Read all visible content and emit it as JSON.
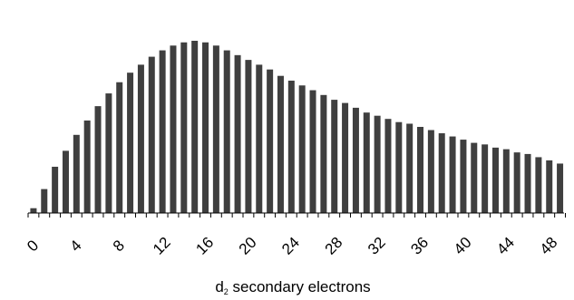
{
  "chart_data": {
    "type": "bar",
    "x": [
      1,
      2,
      3,
      4,
      5,
      6,
      7,
      8,
      9,
      10,
      11,
      12,
      13,
      14,
      15,
      16,
      17,
      18,
      19,
      20,
      21,
      22,
      23,
      24,
      25,
      26,
      27,
      28,
      29,
      30,
      31,
      32,
      33,
      34,
      35,
      36,
      37,
      38,
      39,
      40,
      41,
      42,
      43,
      44,
      45,
      46,
      47,
      48,
      49,
      50
    ],
    "values": [
      3,
      15,
      29,
      39,
      49,
      58,
      67,
      75,
      82,
      88,
      93,
      98,
      102,
      105,
      107,
      108,
      107,
      105,
      102,
      99,
      96,
      93,
      90,
      86,
      83,
      80,
      77,
      74,
      71,
      69,
      66,
      63,
      61,
      59,
      57,
      56,
      54,
      52,
      50,
      48,
      46,
      44,
      43,
      41,
      40,
      38,
      37,
      35,
      33,
      31
    ],
    "xticks": [
      "0",
      "4",
      "8",
      "12",
      "16",
      "20",
      "24",
      "28",
      "32",
      "36",
      "40",
      "44",
      "48"
    ],
    "xtick_values": [
      0,
      4,
      8,
      12,
      16,
      20,
      24,
      28,
      32,
      36,
      40,
      44,
      48
    ],
    "xlabel_main": "d",
    "xlabel_sub": "2",
    "xlabel_rest": " secondary electrons",
    "ylabel": "",
    "ylim": [
      0,
      108
    ],
    "bar_color": "#3f3f3f",
    "grid": false
  }
}
